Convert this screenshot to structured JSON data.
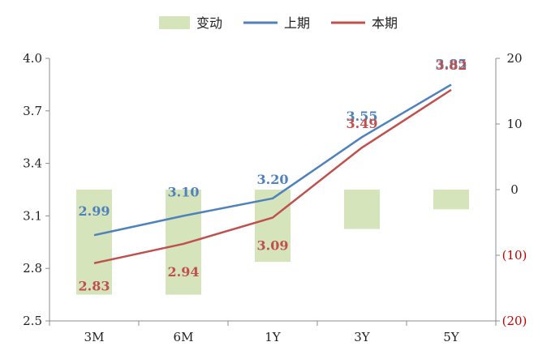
{
  "chart_data": {
    "type": "bar-line",
    "categories": [
      "3M",
      "6M",
      "1Y",
      "3Y",
      "5Y"
    ],
    "legend_position": "top",
    "grid": false,
    "left_axis": {
      "min": 2.5,
      "max": 4.0,
      "ticks": [
        "2.5",
        "2.8",
        "3.1",
        "3.4",
        "3.7",
        "4.0"
      ]
    },
    "right_axis": {
      "min": -20,
      "max": 20,
      "ticks": [
        "(20)",
        "(10)",
        "0",
        "10",
        "20"
      ],
      "tick_values": [
        -20,
        -10,
        0,
        10,
        20
      ]
    },
    "series": [
      {
        "name": "变动",
        "kind": "bar",
        "axis": "right",
        "color": "#d6e4bc",
        "values": [
          -16,
          -16,
          -11,
          -6,
          -3
        ]
      },
      {
        "name": "上期",
        "kind": "line",
        "axis": "left",
        "color": "#4f81bd",
        "values": [
          2.99,
          3.1,
          3.2,
          3.55,
          3.85
        ],
        "labels": [
          "2.99",
          "3.10",
          "3.20",
          "3.55",
          "3.85"
        ]
      },
      {
        "name": "本期",
        "kind": "line",
        "axis": "left",
        "color": "#c0504d",
        "values": [
          2.83,
          2.94,
          3.09,
          3.49,
          3.82
        ],
        "labels": [
          "2.83",
          "2.94",
          "3.09",
          "3.49",
          "3.82"
        ]
      }
    ],
    "negative_tick_color": "#c00000"
  }
}
